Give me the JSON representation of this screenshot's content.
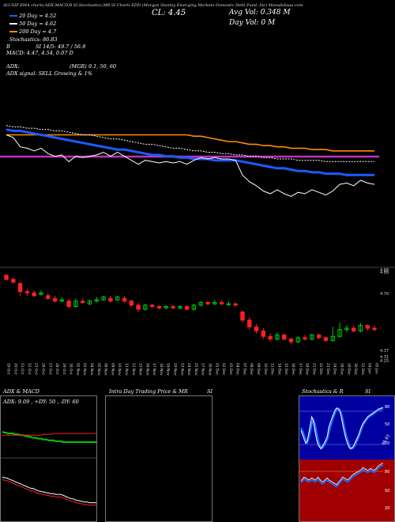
{
  "header": {
    "line1": "ALUSIP EMA charts,ADX,MACD,B SI,Stochastics,MR SI Charts EDD (Morgan Stanley Emerging Markets Domestic Debt Fund, Inc) ManafaSaaa.com",
    "cl": "CL: 4.45",
    "avg_vol": "Avg Vol: 0.348  M",
    "day_vol": "Day Vol: 0   M",
    "ema20": "20  Day = 4.52",
    "ema50": "50  Day = 4.62",
    "ema200": "200  Day = 4.7",
    "stoch": "Stochastics: 86.83",
    "si": "SI 14/5: 49.7 / 56.9",
    "b": "B",
    "macd": "MACD: 4.47, 4.54,  0.07 D",
    "adx": "ADX:",
    "adx_mgr": "(MGR) 9.1,  50,  60",
    "adx_signal": "ADX  signal: SELL Growing & 1%"
  },
  "price_axis": {
    "top": "4.88",
    "top2": "4.86",
    "mid": "4.70",
    "low": "4.37",
    "low2": "4.31",
    "low3": "4.25"
  },
  "dates": [
    "19 Oct",
    "20 Oct",
    "21 Oct",
    "22 Oct",
    "23 Oct",
    "26 Oct",
    "27 Oct",
    "28 Oct",
    "29 Oct",
    "30 Oct",
    "02 Nov",
    "03 Nov",
    "04 Nov",
    "05 Nov",
    "06 Nov",
    "09 Nov",
    "10 Nov",
    "11 Nov",
    "12 Nov",
    "13 Nov",
    "16 Nov",
    "17 Nov",
    "18 Nov",
    "19 Nov",
    "20 Nov",
    "23 Nov",
    "24 Nov",
    "25 Nov",
    "27 Nov",
    "30 Nov",
    "01 Dec",
    "02 Dec",
    "03 Dec",
    "04 Dec",
    "07 Dec",
    "08 Dec",
    "09 Dec",
    "10 Dec",
    "11 Dec",
    "14 Dec",
    "15 Dec",
    "16 Dec",
    "17 Dec",
    "18 Dec",
    "21 Dec",
    "22 Dec",
    "23 Dec",
    "24 Dec",
    "28 Dec",
    "29 Dec",
    "30 Dec",
    "31 Dec",
    "04 Jan",
    "05 Jan"
  ],
  "panels": {
    "adx_title": "ADX  & MACD",
    "adx_readout": "ADX: 9.09 , +DY: 50 , -DY: 60",
    "intra_title": "Intra Day Trading Price  & MR",
    "intra_si": "SI",
    "stoch_title": "Stochastics & R",
    "stoch_si": "SI",
    "stoch_levels": [
      "80",
      "50",
      "20"
    ],
    "rsi_levels": [
      "80",
      "50",
      "20"
    ],
    "stoch_value": "86.83"
  },
  "colors": {
    "ema_orange": "#ff8c00",
    "ema_blue": "#1a5cff",
    "ema_purple": "#c030c0",
    "up": "#00cc00",
    "down": "#ff2020",
    "stoch_bg": "#0000a0",
    "rsi_bg": "#a00000"
  },
  "chart_data": {
    "type": "candlestick",
    "title": "EDD (Morgan Stanley Emerging Markets Domestic Debt Fund, Inc)",
    "categories": [
      "19 Oct",
      "20 Oct",
      "21 Oct",
      "22 Oct",
      "23 Oct",
      "26 Oct",
      "27 Oct",
      "28 Oct",
      "29 Oct",
      "30 Oct",
      "02 Nov",
      "03 Nov",
      "04 Nov",
      "05 Nov",
      "06 Nov",
      "09 Nov",
      "10 Nov",
      "11 Nov",
      "12 Nov",
      "13 Nov",
      "16 Nov",
      "17 Nov",
      "18 Nov",
      "19 Nov",
      "20 Nov",
      "23 Nov",
      "24 Nov",
      "25 Nov",
      "27 Nov",
      "30 Nov",
      "01 Dec",
      "02 Dec",
      "03 Dec",
      "04 Dec",
      "07 Dec",
      "08 Dec",
      "09 Dec",
      "10 Dec",
      "11 Dec",
      "14 Dec",
      "15 Dec",
      "16 Dec",
      "17 Dec",
      "18 Dec",
      "21 Dec",
      "22 Dec",
      "23 Dec",
      "24 Dec",
      "28 Dec",
      "29 Dec",
      "30 Dec",
      "31 Dec",
      "04 Jan",
      "05 Jan"
    ],
    "candles": [
      {
        "o": 4.85,
        "c": 4.82,
        "h": 4.86,
        "l": 4.81
      },
      {
        "o": 4.82,
        "c": 4.8,
        "h": 4.84,
        "l": 4.79
      },
      {
        "o": 4.79,
        "c": 4.73,
        "h": 4.8,
        "l": 4.7
      },
      {
        "o": 4.73,
        "c": 4.72,
        "h": 4.75,
        "l": 4.7
      },
      {
        "o": 4.72,
        "c": 4.7,
        "h": 4.74,
        "l": 4.69
      },
      {
        "o": 4.71,
        "c": 4.72,
        "h": 4.74,
        "l": 4.7
      },
      {
        "o": 4.7,
        "c": 4.68,
        "h": 4.72,
        "l": 4.67
      },
      {
        "o": 4.68,
        "c": 4.66,
        "h": 4.7,
        "l": 4.65
      },
      {
        "o": 4.66,
        "c": 4.67,
        "h": 4.69,
        "l": 4.65
      },
      {
        "o": 4.66,
        "c": 4.62,
        "h": 4.68,
        "l": 4.61
      },
      {
        "o": 4.62,
        "c": 4.66,
        "h": 4.68,
        "l": 4.61
      },
      {
        "o": 4.66,
        "c": 4.65,
        "h": 4.68,
        "l": 4.64
      },
      {
        "o": 4.64,
        "c": 4.66,
        "h": 4.67,
        "l": 4.63
      },
      {
        "o": 4.66,
        "c": 4.67,
        "h": 4.69,
        "l": 4.65
      },
      {
        "o": 4.67,
        "c": 4.69,
        "h": 4.7,
        "l": 4.66
      },
      {
        "o": 4.68,
        "c": 4.66,
        "h": 4.7,
        "l": 4.65
      },
      {
        "o": 4.67,
        "c": 4.69,
        "h": 4.7,
        "l": 4.66
      },
      {
        "o": 4.68,
        "c": 4.66,
        "h": 4.7,
        "l": 4.65
      },
      {
        "o": 4.66,
        "c": 4.63,
        "h": 4.67,
        "l": 4.62
      },
      {
        "o": 4.63,
        "c": 4.6,
        "h": 4.65,
        "l": 4.58
      },
      {
        "o": 4.6,
        "c": 4.63,
        "h": 4.64,
        "l": 4.59
      },
      {
        "o": 4.63,
        "c": 4.62,
        "h": 4.64,
        "l": 4.61
      },
      {
        "o": 4.62,
        "c": 4.61,
        "h": 4.63,
        "l": 4.6
      },
      {
        "o": 4.61,
        "c": 4.62,
        "h": 4.63,
        "l": 4.6
      },
      {
        "o": 4.62,
        "c": 4.61,
        "h": 4.63,
        "l": 4.6
      },
      {
        "o": 4.61,
        "c": 4.62,
        "h": 4.63,
        "l": 4.6
      },
      {
        "o": 4.62,
        "c": 4.6,
        "h": 4.63,
        "l": 4.59
      },
      {
        "o": 4.6,
        "c": 4.63,
        "h": 4.64,
        "l": 4.59
      },
      {
        "o": 4.63,
        "c": 4.65,
        "h": 4.66,
        "l": 4.62
      },
      {
        "o": 4.65,
        "c": 4.64,
        "h": 4.66,
        "l": 4.63
      },
      {
        "o": 4.64,
        "c": 4.65,
        "h": 4.67,
        "l": 4.63
      },
      {
        "o": 4.65,
        "c": 4.64,
        "h": 4.67,
        "l": 4.63
      },
      {
        "o": 4.64,
        "c": 4.64,
        "h": 4.66,
        "l": 4.63
      },
      {
        "o": 4.64,
        "c": 4.63,
        "h": 4.65,
        "l": 4.62
      },
      {
        "o": 4.58,
        "c": 4.52,
        "h": 4.59,
        "l": 4.5
      },
      {
        "o": 4.52,
        "c": 4.47,
        "h": 4.54,
        "l": 4.45
      },
      {
        "o": 4.47,
        "c": 4.44,
        "h": 4.49,
        "l": 4.42
      },
      {
        "o": 4.44,
        "c": 4.4,
        "h": 4.46,
        "l": 4.38
      },
      {
        "o": 4.4,
        "c": 4.38,
        "h": 4.42,
        "l": 4.36
      },
      {
        "o": 4.38,
        "c": 4.41,
        "h": 4.43,
        "l": 4.37
      },
      {
        "o": 4.41,
        "c": 4.38,
        "h": 4.42,
        "l": 4.37
      },
      {
        "o": 4.38,
        "c": 4.36,
        "h": 4.39,
        "l": 4.34
      },
      {
        "o": 4.36,
        "c": 4.39,
        "h": 4.4,
        "l": 4.35
      },
      {
        "o": 4.39,
        "c": 4.38,
        "h": 4.41,
        "l": 4.37
      },
      {
        "o": 4.38,
        "c": 4.41,
        "h": 4.42,
        "l": 4.37
      },
      {
        "o": 4.41,
        "c": 4.39,
        "h": 4.42,
        "l": 4.38
      },
      {
        "o": 4.39,
        "c": 4.37,
        "h": 4.4,
        "l": 4.36
      },
      {
        "o": 4.37,
        "c": 4.4,
        "h": 4.47,
        "l": 4.36
      },
      {
        "o": 4.4,
        "c": 4.45,
        "h": 4.5,
        "l": 4.39
      },
      {
        "o": 4.45,
        "c": 4.46,
        "h": 4.48,
        "l": 4.43
      },
      {
        "o": 4.46,
        "c": 4.44,
        "h": 4.48,
        "l": 4.43
      },
      {
        "o": 4.44,
        "c": 4.48,
        "h": 4.5,
        "l": 4.43
      },
      {
        "o": 4.48,
        "c": 4.46,
        "h": 4.49,
        "l": 4.44
      },
      {
        "o": 4.46,
        "c": 4.45,
        "h": 4.48,
        "l": 4.44
      }
    ],
    "ylim": [
      4.25,
      4.88
    ],
    "series": [
      {
        "name": "20 Day",
        "values": [
          4.86,
          4.85,
          4.85,
          4.84,
          4.83,
          4.82,
          4.81,
          4.8,
          4.79,
          4.78,
          4.77,
          4.76,
          4.75,
          4.74,
          4.73,
          4.72,
          4.71,
          4.71,
          4.7,
          4.69,
          4.68,
          4.67,
          4.67,
          4.66,
          4.66,
          4.65,
          4.65,
          4.64,
          4.64,
          4.64,
          4.63,
          4.63,
          4.63,
          4.63,
          4.62,
          4.61,
          4.6,
          4.59,
          4.58,
          4.57,
          4.57,
          4.56,
          4.55,
          4.55,
          4.54,
          4.54,
          4.53,
          4.53,
          4.53,
          4.52,
          4.52,
          4.52,
          4.52,
          4.52
        ]
      },
      {
        "name": "50 Day",
        "values": [
          4.89,
          4.88,
          4.88,
          4.87,
          4.87,
          4.86,
          4.86,
          4.85,
          4.85,
          4.84,
          4.83,
          4.82,
          4.82,
          4.81,
          4.8,
          4.79,
          4.79,
          4.78,
          4.77,
          4.76,
          4.75,
          4.75,
          4.74,
          4.73,
          4.72,
          4.72,
          4.71,
          4.7,
          4.7,
          4.69,
          4.69,
          4.68,
          4.68,
          4.67,
          4.67,
          4.66,
          4.66,
          4.65,
          4.65,
          4.64,
          4.64,
          4.64,
          4.63,
          4.63,
          4.63,
          4.63,
          4.62,
          4.62,
          4.62,
          4.62,
          4.62,
          4.62,
          4.62,
          4.62
        ]
      },
      {
        "name": "200 Day",
        "values": [
          4.82,
          4.82,
          4.82,
          4.82,
          4.82,
          4.82,
          4.82,
          4.82,
          4.82,
          4.82,
          4.82,
          4.82,
          4.82,
          4.82,
          4.82,
          4.82,
          4.82,
          4.82,
          4.82,
          4.82,
          4.82,
          4.82,
          4.82,
          4.82,
          4.82,
          4.82,
          4.82,
          4.81,
          4.81,
          4.8,
          4.79,
          4.78,
          4.77,
          4.77,
          4.76,
          4.75,
          4.75,
          4.74,
          4.74,
          4.73,
          4.73,
          4.72,
          4.72,
          4.72,
          4.71,
          4.71,
          4.71,
          4.7,
          4.7,
          4.7,
          4.7,
          4.7,
          4.7,
          4.7
        ]
      }
    ]
  },
  "stoch_data": {
    "k": [
      45,
      38,
      30,
      22,
      25,
      40,
      55,
      70,
      62,
      45,
      30,
      20,
      15,
      12,
      18,
      22,
      28,
      35,
      52,
      60,
      68,
      75,
      82,
      86,
      84,
      80,
      70,
      55,
      42,
      30,
      22,
      15,
      12,
      14,
      18,
      24,
      30,
      36,
      44,
      52,
      58,
      62,
      66,
      70,
      72,
      74,
      76,
      78,
      80,
      82,
      84,
      85,
      86,
      86.83
    ],
    "d": [
      50,
      44,
      36,
      28,
      24,
      32,
      44,
      58,
      64,
      56,
      42,
      28,
      18,
      14,
      15,
      18,
      24,
      30,
      42,
      52,
      62,
      70,
      78,
      83,
      85,
      83,
      76,
      64,
      50,
      38,
      28,
      20,
      14,
      13,
      15,
      20,
      26,
      32,
      40,
      48,
      55,
      60,
      64,
      68,
      70,
      72,
      74,
      76,
      78,
      80,
      82,
      83,
      84,
      85
    ]
  },
  "rsi_data": {
    "values": [
      38,
      40,
      42,
      41,
      40,
      39,
      40,
      41,
      40,
      39,
      40,
      42,
      40,
      38,
      37,
      38,
      40,
      41,
      39,
      38,
      37,
      36,
      35,
      34,
      36,
      38,
      40,
      42,
      41,
      40,
      39,
      40,
      42,
      44,
      45,
      46,
      47,
      48,
      49,
      50,
      52,
      51,
      50,
      49,
      50,
      51,
      50,
      49,
      50,
      52,
      54,
      55,
      56,
      56.9
    ]
  },
  "adx_data": {
    "plus_dy": [
      62,
      61,
      61,
      60,
      60,
      60,
      60,
      59,
      59,
      59,
      58,
      58,
      58,
      57,
      57,
      56,
      56,
      55,
      55,
      55,
      54,
      54,
      54,
      53,
      53,
      53,
      52,
      52,
      52,
      52,
      51,
      51,
      51,
      51,
      50,
      50,
      50,
      50,
      50,
      50,
      50,
      50,
      50,
      50,
      50,
      50,
      50,
      50,
      50,
      50,
      50,
      50,
      50,
      50
    ],
    "minus_dy": [
      58,
      58,
      58,
      58,
      58,
      58,
      58,
      58,
      58,
      58,
      58,
      58,
      58,
      58,
      58,
      58,
      58,
      58,
      58,
      58,
      58,
      58,
      58,
      59,
      59,
      59,
      59,
      59,
      59,
      60,
      60,
      60,
      60,
      60,
      60,
      60,
      60,
      60,
      60,
      60,
      60,
      60,
      60,
      60,
      60,
      60,
      60,
      60,
      60,
      60,
      60,
      60,
      60,
      60
    ]
  }
}
